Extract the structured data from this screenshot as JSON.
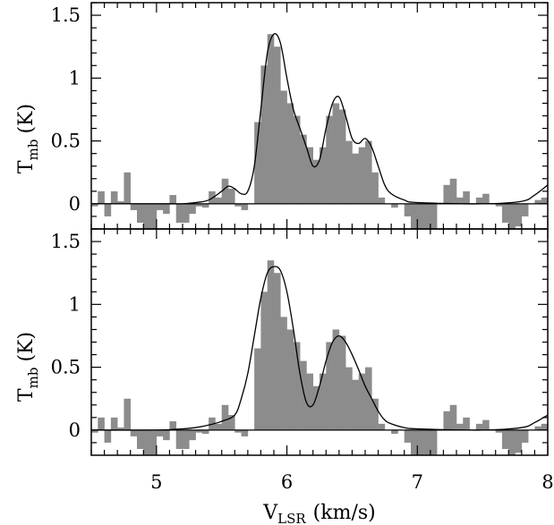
{
  "chart_data": [
    {
      "type": "bar",
      "panel": "top",
      "ylabel": "T",
      "ylabel_sub": "mb",
      "ylabel_unit": "(K)",
      "xlim": [
        4.5,
        8.0
      ],
      "ylim": [
        -0.2,
        1.6
      ],
      "yticks": [
        0,
        0.5,
        1,
        1.5
      ],
      "ytick_labels": [
        "0",
        "0.5",
        "1",
        "1.5"
      ],
      "histogram": {
        "x": [
          4.5,
          4.55,
          4.6,
          4.65,
          4.7,
          4.75,
          4.8,
          4.85,
          4.9,
          4.95,
          5.0,
          5.05,
          5.1,
          5.15,
          5.2,
          5.25,
          5.3,
          5.35,
          5.4,
          5.45,
          5.5,
          5.55,
          5.6,
          5.65,
          5.7,
          5.75,
          5.8,
          5.85,
          5.9,
          5.95,
          6.0,
          6.05,
          6.1,
          6.15,
          6.2,
          6.25,
          6.3,
          6.35,
          6.4,
          6.45,
          6.5,
          6.55,
          6.6,
          6.65,
          6.7,
          6.75,
          6.8,
          6.85,
          6.9,
          6.95,
          7.0,
          7.05,
          7.1,
          7.15,
          7.2,
          7.25,
          7.3,
          7.35,
          7.4,
          7.45,
          7.5,
          7.55,
          7.6,
          7.65,
          7.7,
          7.75,
          7.8,
          7.85,
          7.9,
          7.95
        ],
        "values": [
          -0.02,
          0.1,
          -0.1,
          0.1,
          0.02,
          0.25,
          -0.05,
          -0.15,
          -0.2,
          -0.2,
          -0.05,
          -0.08,
          0.07,
          -0.15,
          -0.15,
          -0.08,
          -0.02,
          -0.03,
          0.1,
          0.05,
          0.2,
          0.12,
          -0.02,
          -0.05,
          0.0,
          0.65,
          1.1,
          1.35,
          1.25,
          0.9,
          0.8,
          0.7,
          0.55,
          0.45,
          0.35,
          0.45,
          0.7,
          0.8,
          0.75,
          0.5,
          0.4,
          0.45,
          0.5,
          0.25,
          0.05,
          0.0,
          -0.03,
          0.0,
          -0.1,
          -0.2,
          -0.2,
          -0.25,
          -0.2,
          0.0,
          0.15,
          0.2,
          0.05,
          0.1,
          0.0,
          0.05,
          0.08,
          0.0,
          -0.02,
          -0.15,
          -0.2,
          -0.18,
          -0.1,
          0.0,
          0.03,
          0.05
        ]
      },
      "fit": {
        "x": [
          4.5,
          5.0,
          5.2,
          5.3,
          5.4,
          5.5,
          5.55,
          5.6,
          5.65,
          5.7,
          5.75,
          5.8,
          5.85,
          5.9,
          5.95,
          6.0,
          6.05,
          6.1,
          6.15,
          6.2,
          6.25,
          6.3,
          6.35,
          6.4,
          6.45,
          6.5,
          6.55,
          6.6,
          6.65,
          6.7,
          6.75,
          6.8,
          6.9,
          7.0,
          7.5,
          7.8,
          7.9,
          8.0
        ],
        "y": [
          0.0,
          0.0,
          0.0,
          0.01,
          0.03,
          0.1,
          0.14,
          0.12,
          0.08,
          0.1,
          0.3,
          0.75,
          1.2,
          1.35,
          1.28,
          1.0,
          0.75,
          0.6,
          0.45,
          0.3,
          0.35,
          0.6,
          0.8,
          0.85,
          0.7,
          0.52,
          0.48,
          0.52,
          0.45,
          0.3,
          0.15,
          0.08,
          0.03,
          0.01,
          0.0,
          0.02,
          0.07,
          0.15
        ]
      }
    },
    {
      "type": "bar",
      "panel": "bottom",
      "xlabel": "V",
      "xlabel_sub": "LSR",
      "xlabel_unit": "(km/s)",
      "ylabel": "T",
      "ylabel_sub": "mb",
      "ylabel_unit": "(K)",
      "xlim": [
        4.5,
        8.0
      ],
      "ylim": [
        -0.2,
        1.6
      ],
      "xticks": [
        5,
        6,
        7,
        8
      ],
      "xtick_labels": [
        "5",
        "6",
        "7",
        "8"
      ],
      "yticks": [
        0,
        0.5,
        1,
        1.5
      ],
      "ytick_labels": [
        "0",
        "0.5",
        "1",
        "1.5"
      ],
      "histogram": {
        "x": [
          4.5,
          4.55,
          4.6,
          4.65,
          4.7,
          4.75,
          4.8,
          4.85,
          4.9,
          4.95,
          5.0,
          5.05,
          5.1,
          5.15,
          5.2,
          5.25,
          5.3,
          5.35,
          5.4,
          5.45,
          5.5,
          5.55,
          5.6,
          5.65,
          5.7,
          5.75,
          5.8,
          5.85,
          5.9,
          5.95,
          6.0,
          6.05,
          6.1,
          6.15,
          6.2,
          6.25,
          6.3,
          6.35,
          6.4,
          6.45,
          6.5,
          6.55,
          6.6,
          6.65,
          6.7,
          6.75,
          6.8,
          6.85,
          6.9,
          6.95,
          7.0,
          7.05,
          7.1,
          7.15,
          7.2,
          7.25,
          7.3,
          7.35,
          7.4,
          7.45,
          7.5,
          7.55,
          7.6,
          7.65,
          7.7,
          7.75,
          7.8,
          7.85,
          7.9,
          7.95
        ],
        "values": [
          -0.02,
          0.1,
          -0.1,
          0.1,
          0.02,
          0.25,
          -0.05,
          -0.15,
          -0.2,
          -0.2,
          -0.05,
          -0.08,
          0.07,
          -0.15,
          -0.15,
          -0.08,
          -0.02,
          -0.03,
          0.1,
          0.05,
          0.2,
          0.12,
          -0.02,
          -0.05,
          0.0,
          0.65,
          1.1,
          1.35,
          1.25,
          0.9,
          0.8,
          0.7,
          0.55,
          0.45,
          0.35,
          0.45,
          0.7,
          0.8,
          0.75,
          0.5,
          0.4,
          0.45,
          0.5,
          0.25,
          0.05,
          0.0,
          -0.03,
          0.0,
          -0.1,
          -0.2,
          -0.2,
          -0.25,
          -0.2,
          0.0,
          0.15,
          0.2,
          0.05,
          0.1,
          0.0,
          0.05,
          0.08,
          0.0,
          -0.02,
          -0.15,
          -0.2,
          -0.18,
          -0.1,
          0.0,
          0.03,
          0.05
        ]
      },
      "fit": {
        "x": [
          4.5,
          5.0,
          5.2,
          5.3,
          5.4,
          5.5,
          5.6,
          5.65,
          5.7,
          5.75,
          5.8,
          5.85,
          5.9,
          5.95,
          6.0,
          6.05,
          6.1,
          6.15,
          6.2,
          6.25,
          6.3,
          6.35,
          6.4,
          6.45,
          6.5,
          6.55,
          6.6,
          6.65,
          6.7,
          6.75,
          6.8,
          6.9,
          7.0,
          7.5,
          7.8,
          7.9,
          8.0
        ],
        "y": [
          0.0,
          0.0,
          0.01,
          0.02,
          0.04,
          0.07,
          0.12,
          0.25,
          0.45,
          0.75,
          1.05,
          1.25,
          1.3,
          1.27,
          1.1,
          0.8,
          0.45,
          0.22,
          0.2,
          0.35,
          0.55,
          0.7,
          0.75,
          0.7,
          0.6,
          0.48,
          0.35,
          0.25,
          0.15,
          0.08,
          0.05,
          0.02,
          0.01,
          0.0,
          0.02,
          0.06,
          0.12
        ]
      }
    }
  ]
}
